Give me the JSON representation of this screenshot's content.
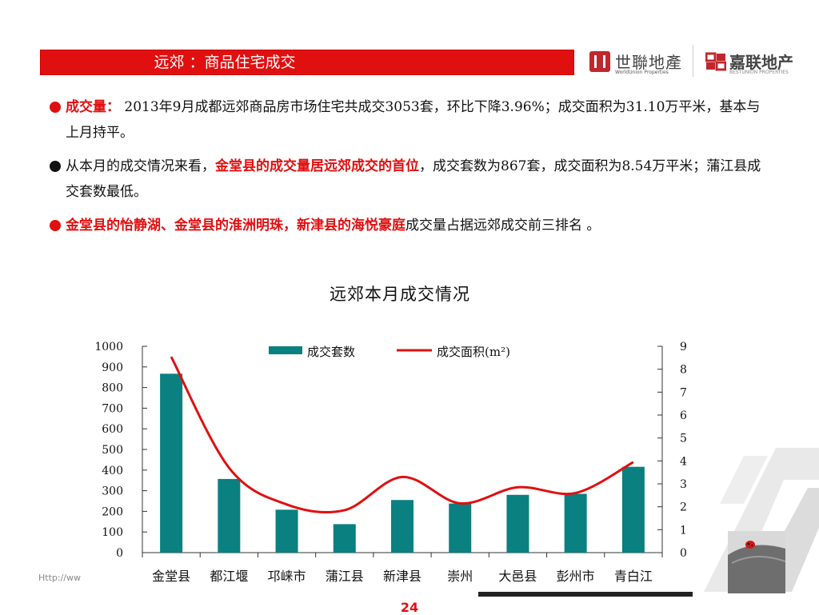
{
  "header": {
    "title": "远郊 ：商品住宅成交",
    "logo_worldunion": {
      "name": "世聯地產",
      "subtitle": "WorldUnion Properties"
    },
    "logo_bestunion": {
      "name": "嘉联地产",
      "subtitle": "BESTUNION PROPERTIES"
    }
  },
  "bullets": [
    {
      "parts": [
        {
          "text": "成交量：",
          "highlight": true
        },
        {
          "text": "  2013年9月成都远郊商品房市场住宅共成交3053套，环比下降3.96%；成交面积为31.10万平米，基本与上月持平。",
          "highlight": false
        }
      ]
    },
    {
      "parts": [
        {
          "text": "从本月的成交情况来看，",
          "highlight": false
        },
        {
          "text": "金堂县的成交量居远郊成交的首位",
          "highlight": true
        },
        {
          "text": "，成交套数为867套，成交面积为8.54万平米；蒲江县成交套数最低。",
          "highlight": false
        }
      ]
    },
    {
      "parts": [
        {
          "text": "金堂县的怡静湖、金堂县的淮洲明珠，新津县的海悦豪庭",
          "highlight": true
        },
        {
          "text": "成交量占据远郊成交前三排名 。",
          "highlight": false
        }
      ]
    }
  ],
  "colors": {
    "accent_red": "#e01010",
    "bullet_dot_1": "#e01010",
    "bullet_dot_2": "#111111",
    "bullet_dot_3": "#e01010",
    "bar_color": "#0a8080",
    "line_color": "#e01010"
  },
  "chart_data": {
    "type": "bar",
    "title": "远郊本月成交情况",
    "categories": [
      "金堂县",
      "都江堰",
      "邛崃市",
      "蒲江县",
      "新津县",
      "崇州",
      "大邑县",
      "彭州市",
      "青白江"
    ],
    "series": [
      {
        "name": "成交套数",
        "type": "bar",
        "axis": "left",
        "values": [
          867,
          357,
          208,
          138,
          255,
          238,
          280,
          285,
          416
        ]
      },
      {
        "name": "成交面积(m²)",
        "type": "line",
        "axis": "right",
        "values": [
          8.54,
          3.7,
          2.1,
          1.85,
          3.3,
          2.15,
          2.85,
          2.6,
          3.95
        ]
      }
    ],
    "y_left": {
      "min": 0,
      "max": 1000,
      "ticks": [
        0,
        100,
        200,
        300,
        400,
        500,
        600,
        700,
        800,
        900,
        1000
      ]
    },
    "y_right": {
      "min": 0,
      "max": 9,
      "ticks": [
        0,
        1,
        2,
        3,
        4,
        5,
        6,
        7,
        8,
        9
      ]
    },
    "legend": "top",
    "grid": false
  },
  "footer": {
    "url": "Http://ww",
    "page_number": "24"
  }
}
